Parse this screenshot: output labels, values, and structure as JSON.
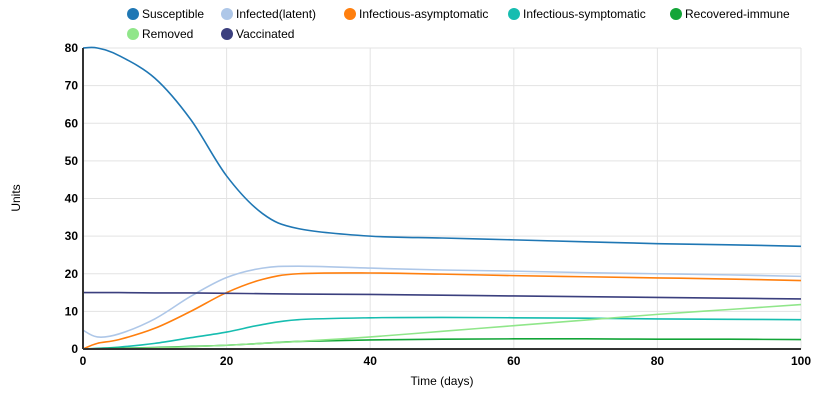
{
  "chart_data": {
    "type": "line",
    "title": "",
    "xlabel": "Time (days)",
    "ylabel": "Units",
    "xlim": [
      0,
      100
    ],
    "ylim": [
      0,
      80
    ],
    "xticks": [
      0,
      20,
      40,
      60,
      80,
      100
    ],
    "yticks": [
      0,
      10,
      20,
      30,
      40,
      50,
      60,
      70,
      80
    ],
    "grid": true,
    "legend_position": "top",
    "x": [
      0,
      2,
      5,
      10,
      15,
      20,
      25,
      30,
      40,
      50,
      60,
      70,
      80,
      90,
      100
    ],
    "series": [
      {
        "name": "Susceptible",
        "color": "#1f77b4",
        "values": [
          80,
          80,
          78,
          72,
          61,
          46,
          36,
          32,
          30,
          29.5,
          29,
          28.5,
          28,
          27.7,
          27.3
        ]
      },
      {
        "name": "Infected(latent)",
        "color": "#aec7e8",
        "values": [
          5,
          3.2,
          4,
          8,
          14,
          19,
          21.5,
          22,
          21.5,
          21,
          20.7,
          20.3,
          20,
          19.7,
          19.3
        ]
      },
      {
        "name": "Infectious-asymptomatic",
        "color": "#ff7f0e",
        "values": [
          0,
          1.5,
          2.5,
          5.5,
          10,
          15,
          18.5,
          20,
          20.2,
          19.9,
          19.5,
          19.2,
          18.9,
          18.6,
          18.2
        ]
      },
      {
        "name": "Infectious-symptomatic",
        "color": "#17bdb0",
        "values": [
          0,
          0.2,
          0.5,
          1.5,
          3,
          4.5,
          6.5,
          7.8,
          8.3,
          8.4,
          8.3,
          8.2,
          8,
          7.9,
          7.8
        ]
      },
      {
        "name": "Recovered-immune",
        "color": "#13a538",
        "values": [
          0,
          0.1,
          0.2,
          0.4,
          0.7,
          1,
          1.5,
          2,
          2.4,
          2.6,
          2.7,
          2.7,
          2.6,
          2.6,
          2.5
        ]
      },
      {
        "name": "Removed",
        "color": "#90e68a",
        "values": [
          0,
          0,
          0.1,
          0.3,
          0.6,
          1,
          1.5,
          2,
          3.2,
          4.7,
          6.2,
          7.7,
          9.2,
          10.5,
          11.8
        ]
      },
      {
        "name": "Vaccinated",
        "color": "#3b3f7e",
        "values": [
          15,
          15,
          15,
          14.9,
          14.9,
          14.8,
          14.7,
          14.6,
          14.5,
          14.3,
          14.1,
          13.9,
          13.7,
          13.5,
          13.3
        ]
      }
    ]
  }
}
